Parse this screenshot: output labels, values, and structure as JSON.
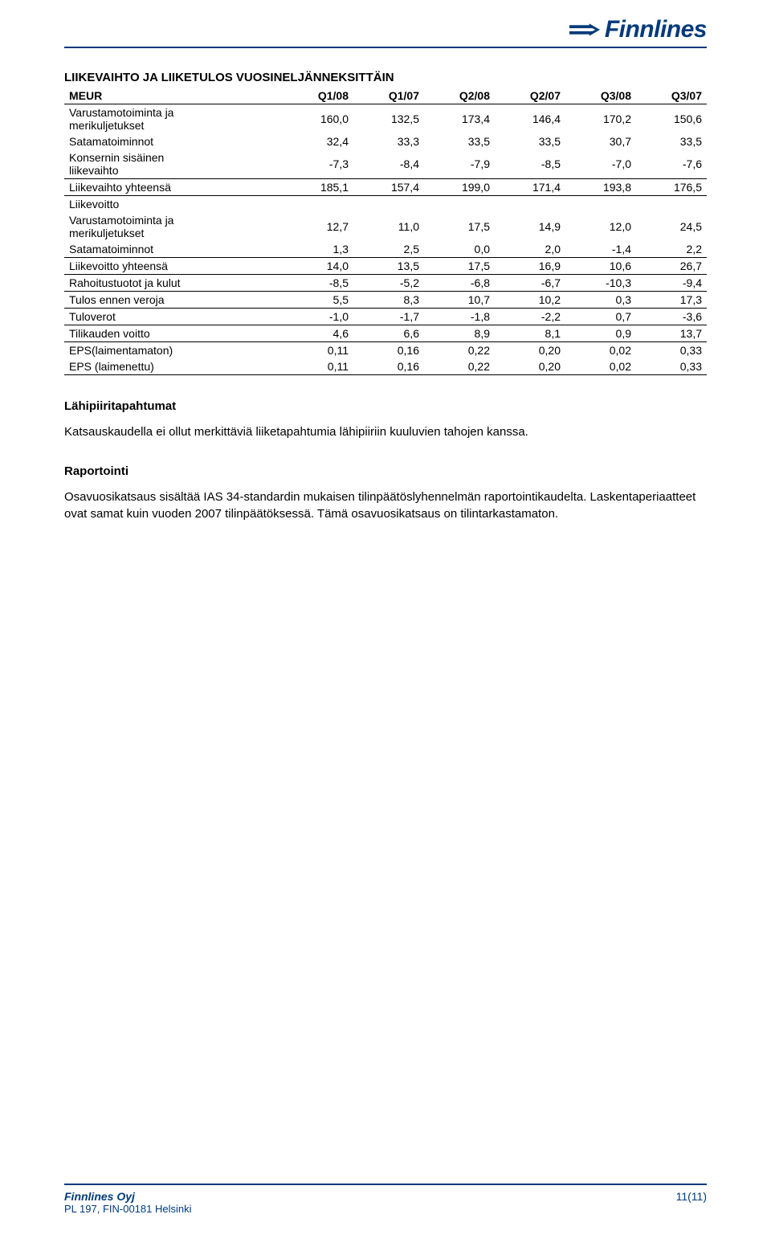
{
  "brand": {
    "name": "Finnlines",
    "brand_color": "#003a7a"
  },
  "title": "LIIKEVAIHTO JA LIIKETULOS VUOSINELJÄNNEKSITTÄIN",
  "table": {
    "columns": [
      "MEUR",
      "Q1/08",
      "Q1/07",
      "Q2/08",
      "Q2/07",
      "Q3/08",
      "Q3/07"
    ],
    "rows": [
      {
        "label": "Varustamotoiminta ja merikuljetukset",
        "v": [
          "160,0",
          "132,5",
          "173,4",
          "146,4",
          "170,2",
          "150,6"
        ],
        "two_line": true
      },
      {
        "label": "Satamatoiminnot",
        "v": [
          "32,4",
          "33,3",
          "33,5",
          "33,5",
          "30,7",
          "33,5"
        ]
      },
      {
        "label": "Konsernin sisäinen liikevaihto",
        "v": [
          "-7,3",
          "-8,4",
          "-7,9",
          "-8,5",
          "-7,0",
          "-7,6"
        ],
        "two_line": true
      },
      {
        "label": "Liikevaihto yhteensä",
        "v": [
          "185,1",
          "157,4",
          "199,0",
          "171,4",
          "193,8",
          "176,5"
        ],
        "top_rule": true,
        "bot_rule": true
      },
      {
        "label": "Liikevoitto",
        "v": [
          "",
          "",
          "",
          "",
          "",
          ""
        ]
      },
      {
        "label": "Varustamotoiminta ja merikuljetukset",
        "v": [
          "12,7",
          "11,0",
          "17,5",
          "14,9",
          "12,0",
          "24,5"
        ],
        "two_line": true
      },
      {
        "label": "Satamatoiminnot",
        "v": [
          "1,3",
          "2,5",
          "0,0",
          "2,0",
          "-1,4",
          "2,2"
        ]
      },
      {
        "label": "Liikevoitto yhteensä",
        "v": [
          "14,0",
          "13,5",
          "17,5",
          "16,9",
          "10,6",
          "26,7"
        ],
        "top_rule": true,
        "bot_rule": true
      },
      {
        "label": "Rahoitustuotot ja kulut",
        "v": [
          "-8,5",
          "-5,2",
          "-6,8",
          "-6,7",
          "-10,3",
          "-9,4"
        ]
      },
      {
        "label": "Tulos ennen veroja",
        "v": [
          "5,5",
          "8,3",
          "10,7",
          "10,2",
          "0,3",
          "17,3"
        ],
        "top_rule": true,
        "bot_rule": true
      },
      {
        "label": "Tuloverot",
        "v": [
          "-1,0",
          "-1,7",
          "-1,8",
          "-2,2",
          "0,7",
          "-3,6"
        ]
      },
      {
        "label": "Tilikauden voitto",
        "v": [
          "4,6",
          "6,6",
          "8,9",
          "8,1",
          "0,9",
          "13,7"
        ],
        "top_rule": true,
        "bot_rule": true
      },
      {
        "label": "EPS(laimentamaton)",
        "v": [
          "0,11",
          "0,16",
          "0,22",
          "0,20",
          "0,02",
          "0,33"
        ]
      },
      {
        "label": "EPS (laimenettu)",
        "v": [
          "0,11",
          "0,16",
          "0,22",
          "0,20",
          "0,02",
          "0,33"
        ],
        "bot_rule": true
      }
    ]
  },
  "sections": {
    "s1_head": "Lähipiiritapahtumat",
    "s1_body": "Katsauskaudella ei ollut merkittäviä liiketapahtumia lähipiiriin kuuluvien tahojen kanssa.",
    "s2_head": "Raportointi",
    "s2_body": "Osavuosikatsaus sisältää IAS 34-standardin mukaisen tilinpäätöslyhennelmän raportointikaudelta. Laskentaperiaatteet ovat samat kuin vuoden 2007 tilinpäätöksessä. Tämä osavuosikatsaus on tilintarkastamaton."
  },
  "footer": {
    "company": "Finnlines Oyj",
    "address": "PL 197, FIN-00181 Helsinki",
    "page": "11(11)"
  }
}
